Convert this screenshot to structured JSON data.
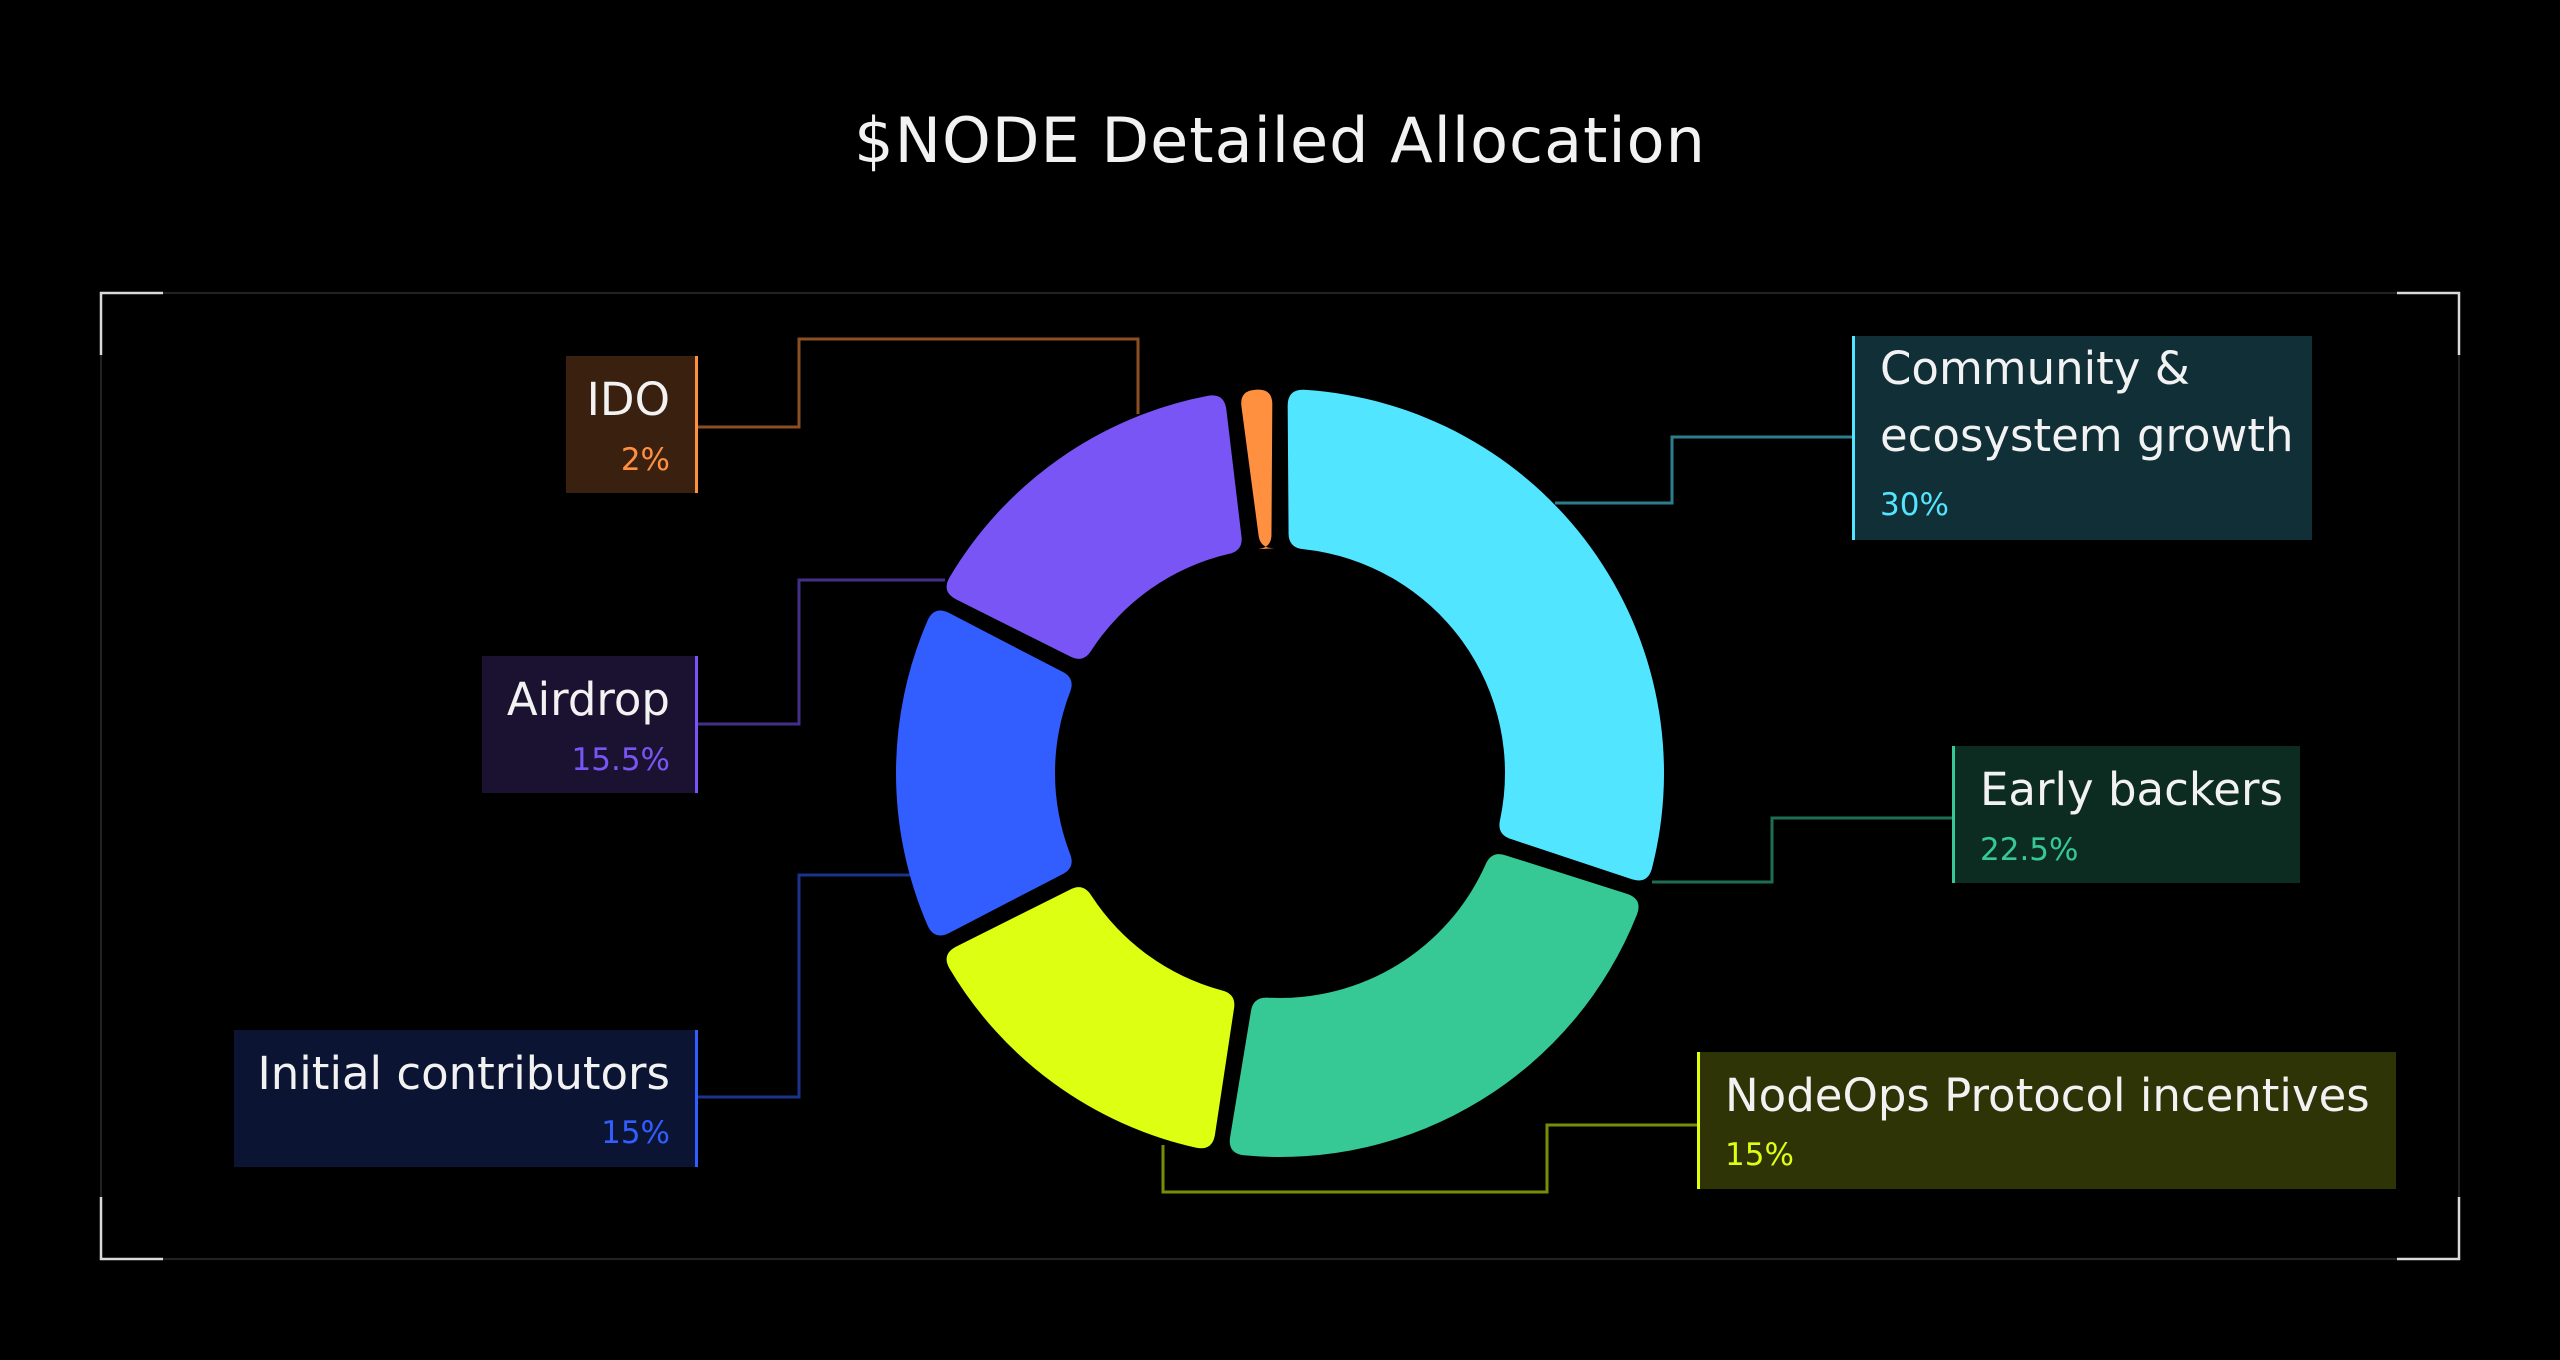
{
  "title": "$NODE Detailed Allocation",
  "chart_data": {
    "type": "pie",
    "title": "$NODE Detailed Allocation",
    "donut": true,
    "slices": [
      {
        "label": "Community & ecosystem growth",
        "label_lines": [
          "Community &",
          "ecosystem growth"
        ],
        "value": 30,
        "display": "30%",
        "color": "#52e5ff",
        "bg": "#112f37"
      },
      {
        "label": "Early backers",
        "label_lines": [
          "Early backers"
        ],
        "value": 22.5,
        "display": "22.5%",
        "color": "#36c895",
        "bg": "#0c2c22"
      },
      {
        "label": "NodeOps Protocol incentives",
        "label_lines": [
          "NodeOps Protocol incentives"
        ],
        "value": 15,
        "display": "15%",
        "color": "#dcff12",
        "bg": "#2e3406"
      },
      {
        "label": "Initial contributors",
        "label_lines": [
          "Initial contributors"
        ],
        "value": 15,
        "display": "15%",
        "color": "#325dff",
        "bg": "#0b1433"
      },
      {
        "label": "Airdrop",
        "label_lines": [
          "Airdrop"
        ],
        "value": 15.5,
        "display": "15.5%",
        "color": "#7a55f5",
        "bg": "#1b1232"
      },
      {
        "label": "IDO",
        "label_lines": [
          "IDO"
        ],
        "value": 2,
        "display": "2%",
        "color": "#ff9040",
        "bg": "#3a200f"
      }
    ]
  }
}
